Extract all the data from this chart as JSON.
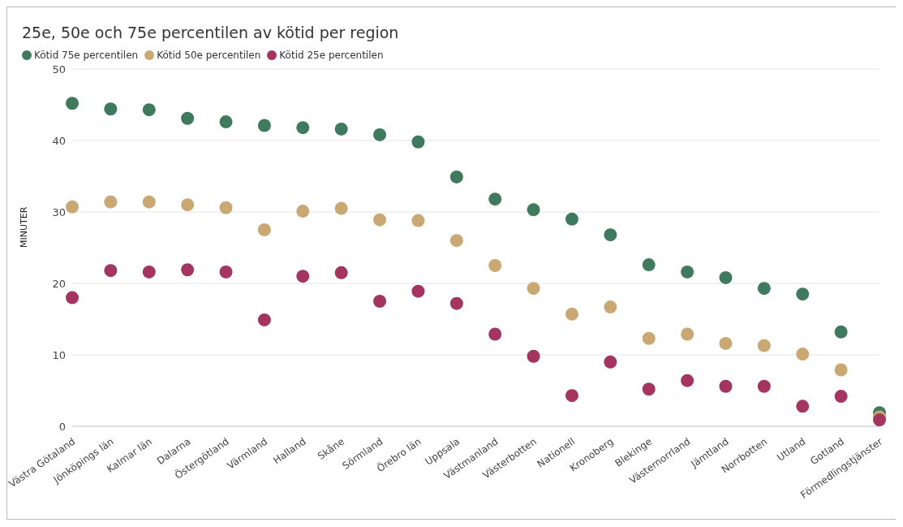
{
  "chart_data": {
    "type": "scatter",
    "title": "25e, 50e och 75e percentilen av kötid per region",
    "ylabel": "MINUTER",
    "categories": [
      "Västra Götaland",
      "Jönköpings län",
      "Kalmar län",
      "Dalarna",
      "Östergötland",
      "Värmland",
      "Halland",
      "Skåne",
      "Sörmland",
      "Örebro län",
      "Uppsala",
      "Västmanland",
      "Västerbotten",
      "Nationell",
      "Kronoberg",
      "Blekinge",
      "Västernorrland",
      "Jämtland",
      "Norrbotten",
      "Utland",
      "Gotland",
      "Förmedlingstjänster"
    ],
    "series": [
      {
        "name": "Kötid 75e percentilen",
        "color": "#3f7a5e",
        "values": [
          45.2,
          44.4,
          44.3,
          43.1,
          42.6,
          42.1,
          41.8,
          41.6,
          40.8,
          39.8,
          34.9,
          31.8,
          30.3,
          29.0,
          26.8,
          22.6,
          21.6,
          20.8,
          19.3,
          18.5,
          13.2,
          1.9
        ]
      },
      {
        "name": "Kötid 50e percentilen",
        "color": "#c9a874",
        "values": [
          30.7,
          31.4,
          31.4,
          31.0,
          30.6,
          27.5,
          30.1,
          30.5,
          28.9,
          28.8,
          26.0,
          22.5,
          19.3,
          15.7,
          16.7,
          12.3,
          12.9,
          11.6,
          11.3,
          10.1,
          7.9,
          1.3
        ]
      },
      {
        "name": "Kötid 25e percentilen",
        "color": "#a33560",
        "values": [
          18.0,
          21.8,
          21.6,
          21.9,
          21.6,
          14.9,
          21.0,
          21.5,
          17.5,
          18.9,
          17.2,
          12.9,
          9.8,
          4.3,
          9.0,
          5.2,
          6.4,
          5.6,
          5.6,
          2.8,
          4.2,
          0.9
        ]
      }
    ],
    "ylim": [
      0,
      50
    ],
    "yticks": [
      0,
      10,
      20,
      30,
      40,
      50
    ],
    "grid": "y",
    "legend": "top left",
    "marker": "circle"
  }
}
